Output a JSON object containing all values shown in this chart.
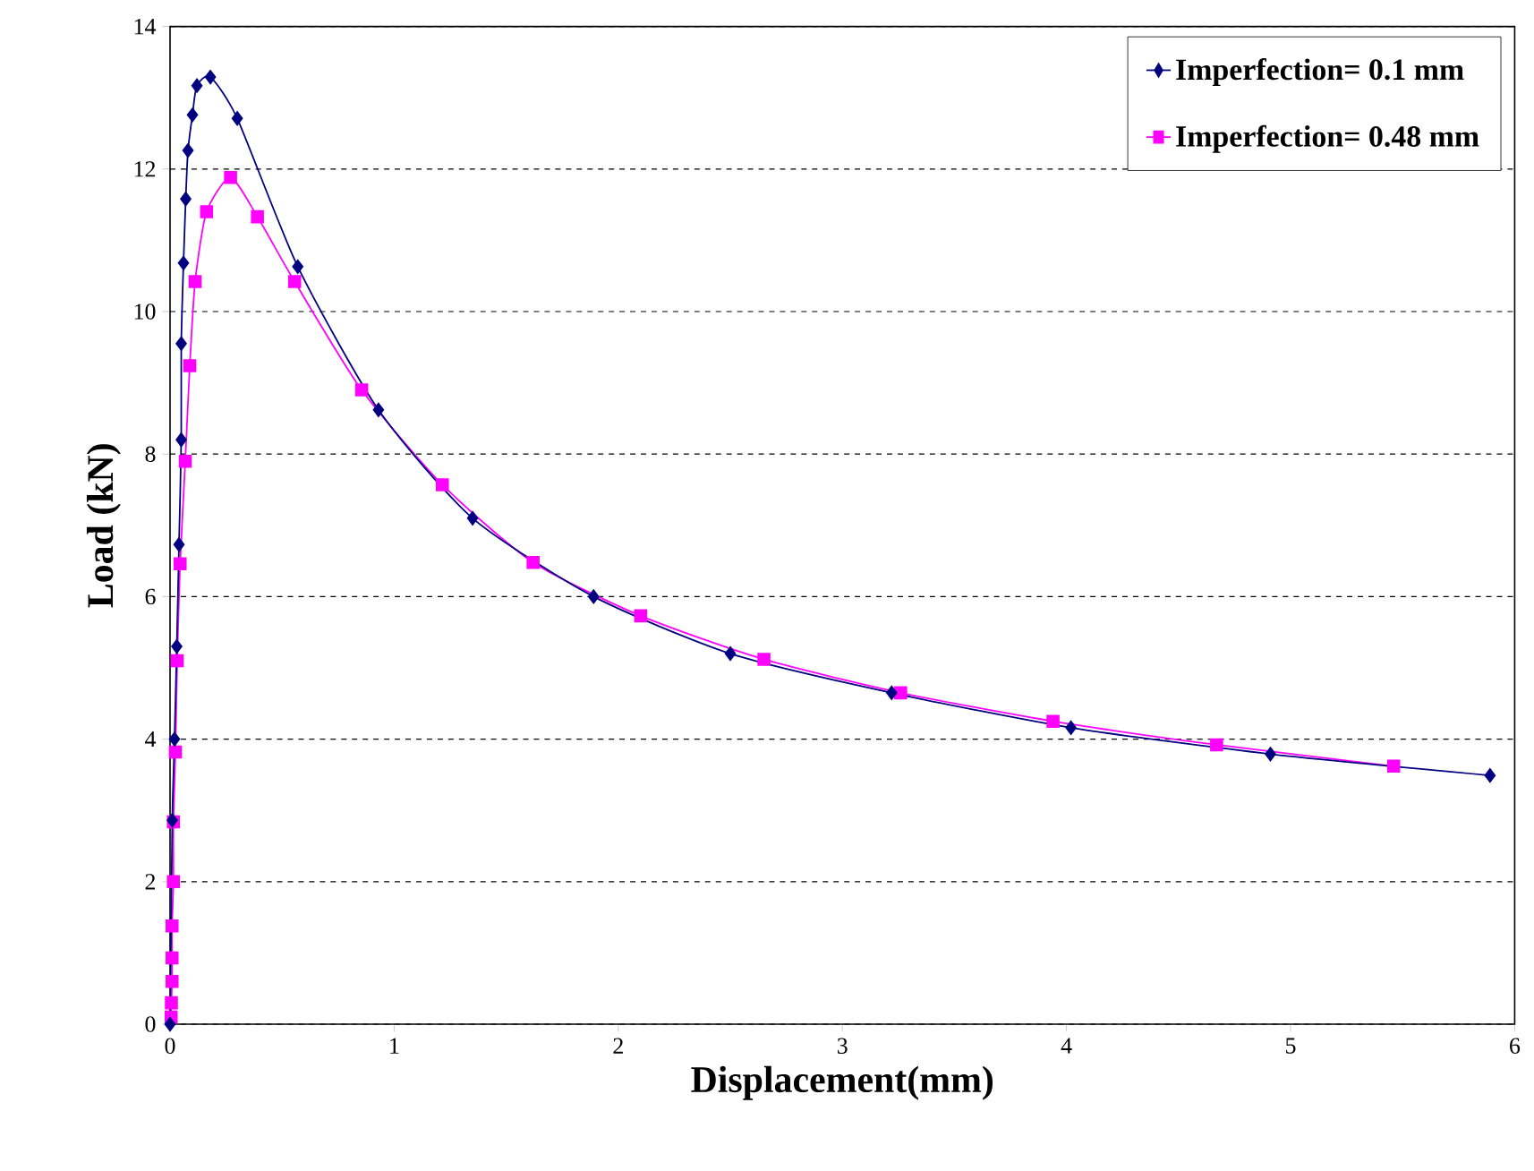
{
  "chart_data": {
    "type": "line",
    "xlabel": "Displacement(mm)",
    "ylabel": "Load (kN)",
    "xlim": [
      0,
      6
    ],
    "ylim": [
      0,
      14
    ],
    "xticks": [
      0,
      1,
      2,
      3,
      4,
      5,
      6
    ],
    "yticks": [
      0,
      2,
      4,
      6,
      8,
      10,
      12,
      14
    ],
    "grid": "y",
    "legend": "top right",
    "series": [
      {
        "name": "Imperfection= 0.1 mm",
        "color": "#000080",
        "marker": "diamond",
        "x": [
          0.0,
          0.01,
          0.02,
          0.03,
          0.04,
          0.05,
          0.05,
          0.06,
          0.07,
          0.08,
          0.1,
          0.12,
          0.18,
          0.3,
          0.57,
          0.93,
          1.35,
          1.89,
          2.5,
          3.22,
          4.02,
          4.91,
          5.89
        ],
        "values": [
          0.0,
          2.86,
          4.0,
          5.3,
          6.73,
          8.2,
          9.55,
          10.68,
          11.58,
          12.26,
          12.76,
          13.17,
          13.29,
          12.71,
          10.63,
          8.62,
          7.1,
          6.0,
          5.2,
          4.65,
          4.16,
          3.79,
          3.49
        ]
      },
      {
        "name": "Imperfection= 0.48 mm",
        "color": "#ff00ff",
        "marker": "square",
        "x": [
          0.005,
          0.006,
          0.009,
          0.009,
          0.009,
          0.015,
          0.015,
          0.024,
          0.032,
          0.045,
          0.068,
          0.088,
          0.112,
          0.163,
          0.27,
          0.39,
          0.556,
          0.855,
          1.215,
          1.62,
          2.1,
          2.65,
          3.26,
          3.94,
          4.67,
          5.46
        ],
        "values": [
          0.1,
          0.3,
          0.6,
          0.93,
          1.38,
          2.0,
          2.84,
          3.82,
          5.1,
          6.46,
          7.9,
          9.24,
          10.42,
          11.4,
          11.88,
          11.33,
          10.42,
          8.9,
          7.57,
          6.48,
          5.73,
          5.12,
          4.65,
          4.25,
          3.92,
          3.62
        ]
      }
    ]
  }
}
